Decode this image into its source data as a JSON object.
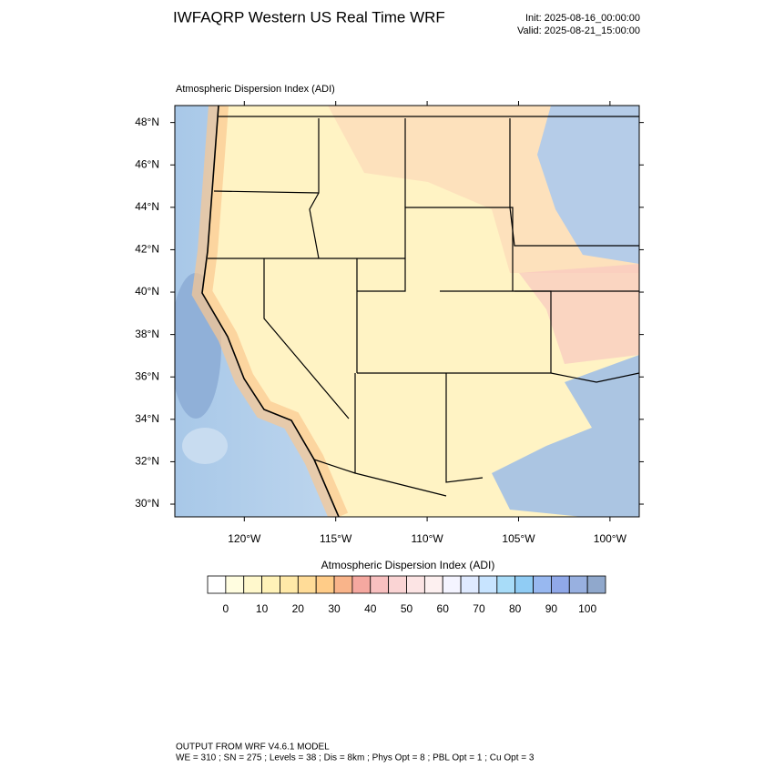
{
  "header": {
    "title": "IWFAQRP Western US Real Time WRF",
    "init": "Init: 2025-08-16_00:00:00",
    "valid": "Valid: 2025-08-21_15:00:00"
  },
  "map": {
    "field_label": "Atmospheric Dispersion Index   (ADI)",
    "lonlim": [
      -123.8,
      -98.4
    ],
    "latlim": [
      29.4,
      48.8
    ],
    "lat_ticks": [
      {
        "value": 48,
        "label": "48°N"
      },
      {
        "value": 46,
        "label": "46°N"
      },
      {
        "value": 44,
        "label": "44°N"
      },
      {
        "value": 42,
        "label": "42°N"
      },
      {
        "value": 40,
        "label": "40°N"
      },
      {
        "value": 38,
        "label": "38°N"
      },
      {
        "value": 36,
        "label": "36°N"
      },
      {
        "value": 34,
        "label": "34°N"
      },
      {
        "value": 32,
        "label": "32°N"
      },
      {
        "value": 30,
        "label": "30°N"
      }
    ],
    "lon_ticks": [
      {
        "value": -120,
        "label": "120°W"
      },
      {
        "value": -115,
        "label": "115°W"
      },
      {
        "value": -110,
        "label": "110°W"
      },
      {
        "value": -105,
        "label": "105°W"
      },
      {
        "value": -100,
        "label": "100°W"
      }
    ]
  },
  "colorbar": {
    "label": "Atmospheric Dispersion Index  (ADI)",
    "range": [
      -5,
      105
    ],
    "ticks": [
      0,
      10,
      20,
      30,
      40,
      50,
      60,
      70,
      80,
      90,
      100
    ],
    "colors": [
      "#ffffff",
      "#fffde0",
      "#fff8cc",
      "#fff2b8",
      "#ffe9a8",
      "#ffdc98",
      "#ffcc88",
      "#f9b48a",
      "#f5a8a0",
      "#f8c0c0",
      "#fad4d4",
      "#fce4e4",
      "#fdf0f0",
      "#f4f4ff",
      "#dfeaff",
      "#c8e4ff",
      "#a8dcf8",
      "#90ccf4",
      "#98b8f0",
      "#90a8e8",
      "#98b0e0",
      "#90a8cc"
    ]
  },
  "footer": {
    "line1": "OUTPUT FROM WRF V4.6.1 MODEL",
    "line2": "WE = 310 ; SN = 275 ; Levels = 38 ; Dis = 8km ; Phys Opt = 8 ; PBL Opt = 1 ; Cu Opt = 3"
  }
}
